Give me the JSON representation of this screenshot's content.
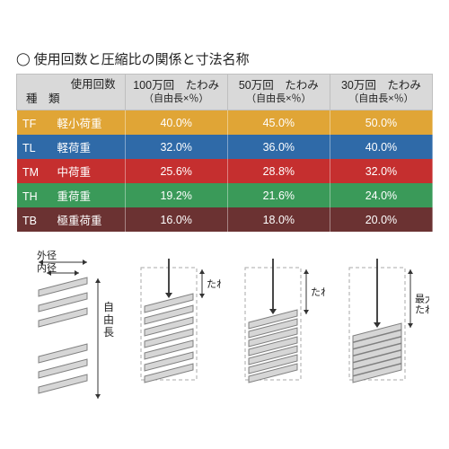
{
  "title": "使用回数と圧縮比の関係と寸法名称",
  "header": {
    "col0_label_top": "使用回数",
    "col0_label_bottom": "種　類",
    "col1": "100万回　たわみ",
    "col2": "50万回　たわみ",
    "col3": "30万回　たわみ",
    "sub": "（自由長×％）"
  },
  "rows": [
    {
      "code": "TF",
      "name": "軽小荷重",
      "v1": "40.0%",
      "v2": "45.0%",
      "v3": "50.0%",
      "color": "#e0a536"
    },
    {
      "code": "TL",
      "name": "軽荷重",
      "v1": "32.0%",
      "v2": "36.0%",
      "v3": "40.0%",
      "color": "#2f6aa8"
    },
    {
      "code": "TM",
      "name": "中荷重",
      "v1": "25.6%",
      "v2": "28.8%",
      "v3": "32.0%",
      "color": "#c52f2f"
    },
    {
      "code": "TH",
      "name": "重荷重",
      "v1": "19.2%",
      "v2": "21.6%",
      "v3": "24.0%",
      "color": "#3a9a59"
    },
    {
      "code": "TB",
      "name": "極重荷重",
      "v1": "16.0%",
      "v2": "18.0%",
      "v3": "20.0%",
      "color": "#6b3232"
    }
  ],
  "diagram_labels": {
    "outer_d": "外径",
    "inner_d": "内径",
    "free_len": "自由長",
    "deflection": "たわみ",
    "max_deflection": "最大\nたわみ"
  },
  "style": {
    "header_bg": "#d9d9d9",
    "header_border": "#bfbfbf",
    "coil_stroke": "#808080",
    "coil_fill": "#d6d6d6",
    "arrow_color": "#333333",
    "text_color": "#222222"
  }
}
